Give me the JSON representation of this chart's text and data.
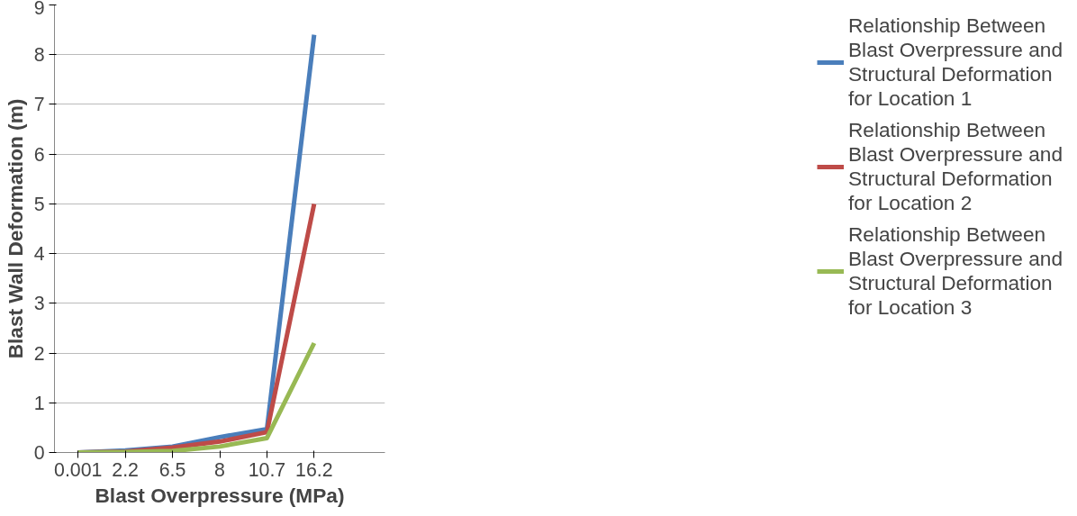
{
  "chart_data": {
    "type": "line",
    "xlabel": "Blast Overpressure (MPa)",
    "ylabel": "Blast Wall Deformation (m)",
    "categories": [
      "0.001",
      "2.2",
      "6.5",
      "8",
      "10.7",
      "16.2"
    ],
    "series": [
      {
        "name": "Relationship Between Blast Overpressure and Structural Deformation for Location 1",
        "color": "#4a7ebb",
        "values": [
          0,
          0.04,
          0.12,
          0.31,
          0.47,
          8.4
        ]
      },
      {
        "name": "Relationship Between Blast Overpressure and Structural Deformation for Location 2",
        "color": "#be4b48",
        "values": [
          0,
          0.02,
          0.1,
          0.22,
          0.41,
          5.0
        ]
      },
      {
        "name": "Relationship Between Blast Overpressure and Structural Deformation for Location 3",
        "color": "#98b954",
        "values": [
          0,
          0.01,
          0.03,
          0.12,
          0.29,
          2.2
        ]
      }
    ],
    "ylim": [
      0,
      9
    ],
    "yticks": [
      0,
      1,
      2,
      3,
      4,
      5,
      6,
      7,
      8,
      9
    ],
    "grid": "y",
    "legend": "right",
    "marker": "none",
    "line_style": "solid"
  }
}
